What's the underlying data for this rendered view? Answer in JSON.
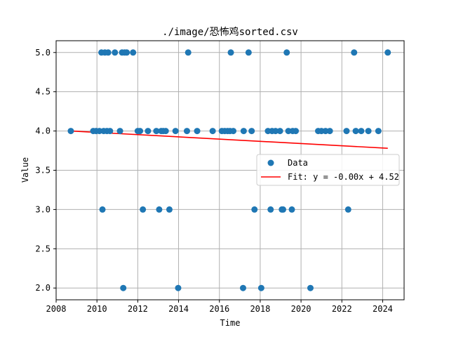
{
  "chart_data": {
    "type": "scatter",
    "title": "./image/恐怖鸡sorted.csv",
    "xlabel": "Time",
    "ylabel": "Value",
    "xlim": [
      2008.0,
      2025.05
    ],
    "ylim": [
      1.85,
      5.15
    ],
    "xticks": [
      2008,
      2010,
      2012,
      2014,
      2016,
      2018,
      2020,
      2022,
      2024
    ],
    "yticks": [
      2.0,
      2.5,
      3.0,
      3.5,
      4.0,
      4.5,
      5.0
    ],
    "xtick_labels": [
      "2008",
      "2010",
      "2012",
      "2014",
      "2016",
      "2018",
      "2020",
      "2022",
      "2024"
    ],
    "ytick_labels": [
      "2.0",
      "2.5",
      "3.0",
      "3.5",
      "4.0",
      "4.5",
      "5.0"
    ],
    "grid": true,
    "legend_position": "center-right",
    "series": [
      {
        "name": "Data",
        "kind": "scatter",
        "color": "#1f77b4",
        "points": [
          [
            2008.72,
            4.0
          ],
          [
            2009.82,
            4.0
          ],
          [
            2009.96,
            4.0
          ],
          [
            2010.12,
            4.0
          ],
          [
            2010.22,
            5.0
          ],
          [
            2010.27,
            3.0
          ],
          [
            2010.33,
            4.0
          ],
          [
            2010.39,
            5.0
          ],
          [
            2010.49,
            4.0
          ],
          [
            2010.55,
            5.0
          ],
          [
            2010.64,
            4.0
          ],
          [
            2010.88,
            5.0
          ],
          [
            2011.13,
            4.0
          ],
          [
            2011.23,
            5.0
          ],
          [
            2011.29,
            2.0
          ],
          [
            2011.36,
            5.0
          ],
          [
            2011.46,
            5.0
          ],
          [
            2011.77,
            5.0
          ],
          [
            2012.0,
            4.0
          ],
          [
            2012.11,
            4.0
          ],
          [
            2012.25,
            3.0
          ],
          [
            2012.5,
            4.0
          ],
          [
            2012.91,
            4.0
          ],
          [
            2013.05,
            3.0
          ],
          [
            2013.15,
            4.0
          ],
          [
            2013.25,
            4.0
          ],
          [
            2013.37,
            4.0
          ],
          [
            2013.55,
            3.0
          ],
          [
            2013.85,
            4.0
          ],
          [
            2013.98,
            2.0
          ],
          [
            2014.41,
            4.0
          ],
          [
            2014.47,
            5.0
          ],
          [
            2014.91,
            4.0
          ],
          [
            2015.67,
            4.0
          ],
          [
            2016.12,
            4.0
          ],
          [
            2016.26,
            4.0
          ],
          [
            2016.4,
            4.0
          ],
          [
            2016.52,
            4.0
          ],
          [
            2016.56,
            5.0
          ],
          [
            2016.68,
            4.0
          ],
          [
            2017.16,
            2.0
          ],
          [
            2017.19,
            4.0
          ],
          [
            2017.43,
            5.0
          ],
          [
            2017.58,
            4.0
          ],
          [
            2017.72,
            3.0
          ],
          [
            2018.05,
            2.0
          ],
          [
            2018.38,
            4.0
          ],
          [
            2018.51,
            3.0
          ],
          [
            2018.58,
            4.0
          ],
          [
            2018.75,
            4.0
          ],
          [
            2018.97,
            4.0
          ],
          [
            2019.06,
            3.0
          ],
          [
            2019.12,
            3.0
          ],
          [
            2019.3,
            5.0
          ],
          [
            2019.38,
            4.0
          ],
          [
            2019.55,
            3.0
          ],
          [
            2019.59,
            4.0
          ],
          [
            2019.74,
            4.0
          ],
          [
            2020.46,
            2.0
          ],
          [
            2020.84,
            4.0
          ],
          [
            2021.0,
            4.0
          ],
          [
            2021.2,
            4.0
          ],
          [
            2021.41,
            4.0
          ],
          [
            2022.23,
            4.0
          ],
          [
            2022.31,
            3.0
          ],
          [
            2022.6,
            5.0
          ],
          [
            2022.68,
            4.0
          ],
          [
            2022.95,
            4.0
          ],
          [
            2023.3,
            4.0
          ],
          [
            2023.79,
            4.0
          ],
          [
            2024.25,
            5.0
          ]
        ]
      },
      {
        "name": "Fit: y = -0.00x + 4.52",
        "kind": "line",
        "color": "#ff0000",
        "x": [
          2008.72,
          2024.25
        ],
        "y": [
          4.0,
          3.78
        ]
      }
    ]
  }
}
